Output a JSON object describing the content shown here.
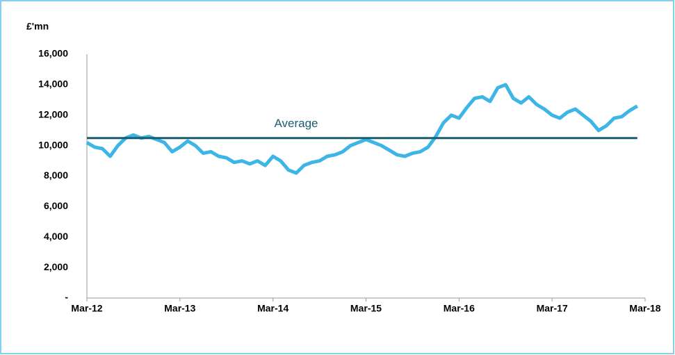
{
  "chart_data": {
    "type": "line",
    "y_axis_label": "£'mn",
    "annotation": "Average",
    "xlim": [
      "2012-03",
      "2018-03"
    ],
    "xticks": [
      {
        "value": "2012-03",
        "label": "Mar-12"
      },
      {
        "value": "2013-03",
        "label": "Mar-13"
      },
      {
        "value": "2014-03",
        "label": "Mar-14"
      },
      {
        "value": "2015-03",
        "label": "Mar-15"
      },
      {
        "value": "2016-03",
        "label": "Mar-16"
      },
      {
        "value": "2017-03",
        "label": "Mar-17"
      },
      {
        "value": "2018-03",
        "label": "Mar-18"
      }
    ],
    "ylim": [
      0,
      16000
    ],
    "yticks": [
      {
        "value": 0,
        "label": "-"
      },
      {
        "value": 2000,
        "label": "2,000"
      },
      {
        "value": 4000,
        "label": "4,000"
      },
      {
        "value": 6000,
        "label": "6,000"
      },
      {
        "value": 8000,
        "label": "8,000"
      },
      {
        "value": 10000,
        "label": "10,000"
      },
      {
        "value": 12000,
        "label": "12,000"
      },
      {
        "value": 14000,
        "label": "14,000"
      },
      {
        "value": 16000,
        "label": "16,000"
      }
    ],
    "series": [
      {
        "color": "#3db5e6",
        "x": [
          "2012-03",
          "2012-04",
          "2012-05",
          "2012-06",
          "2012-07",
          "2012-08",
          "2012-09",
          "2012-10",
          "2012-11",
          "2012-12",
          "2013-01",
          "2013-02",
          "2013-03",
          "2013-04",
          "2013-05",
          "2013-06",
          "2013-07",
          "2013-08",
          "2013-09",
          "2013-10",
          "2013-11",
          "2013-12",
          "2014-01",
          "2014-02",
          "2014-03",
          "2014-04",
          "2014-05",
          "2014-06",
          "2014-07",
          "2014-08",
          "2014-09",
          "2014-10",
          "2014-11",
          "2014-12",
          "2015-01",
          "2015-02",
          "2015-03",
          "2015-04",
          "2015-05",
          "2015-06",
          "2015-07",
          "2015-08",
          "2015-09",
          "2015-10",
          "2015-11",
          "2015-12",
          "2016-01",
          "2016-02",
          "2016-03",
          "2016-04",
          "2016-05",
          "2016-06",
          "2016-07",
          "2016-08",
          "2016-09",
          "2016-10",
          "2016-11",
          "2016-12",
          "2017-01",
          "2017-02",
          "2017-03",
          "2017-04",
          "2017-05",
          "2017-06",
          "2017-07",
          "2017-08",
          "2017-09",
          "2017-10",
          "2017-11",
          "2017-12",
          "2018-01",
          "2018-02"
        ],
        "values": [
          10200,
          9900,
          9800,
          9300,
          10000,
          10500,
          10700,
          10500,
          10600,
          10400,
          10200,
          9600,
          9900,
          10300,
          10000,
          9500,
          9600,
          9300,
          9200,
          8900,
          9000,
          8800,
          9000,
          8700,
          9300,
          9000,
          8400,
          8200,
          8700,
          8900,
          9000,
          9300,
          9400,
          9600,
          10000,
          10200,
          10400,
          10200,
          10000,
          9700,
          9400,
          9300,
          9500,
          9600,
          9900,
          10600,
          11500,
          12000,
          11800,
          12500,
          13100,
          13200,
          12900,
          13800,
          14000,
          13100,
          12800,
          13200,
          12700,
          12400,
          12000,
          11800,
          12200,
          12400,
          12000,
          11600,
          11000,
          11300,
          11800,
          11900,
          12300,
          12600
        ]
      },
      {
        "color": "#1a5c70",
        "x": [
          "2012-03",
          "2018-02"
        ],
        "values": [
          10500,
          10500
        ]
      }
    ]
  }
}
